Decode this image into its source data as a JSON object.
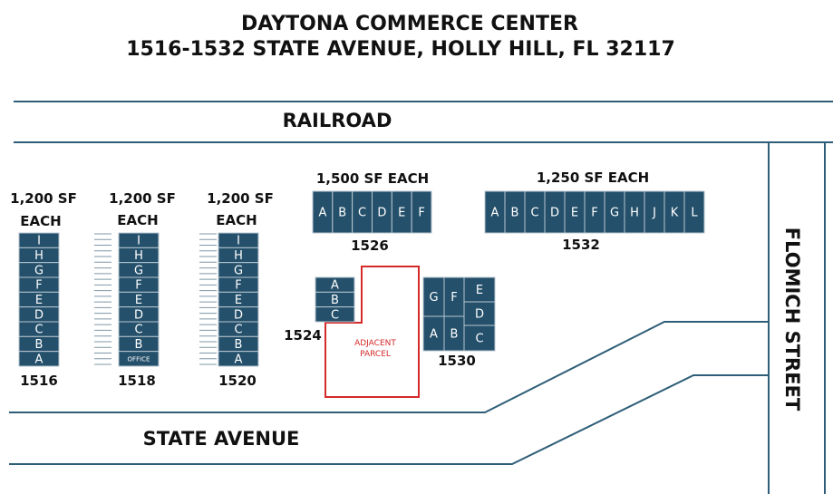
{
  "title": {
    "line1": "DAYTONA COMMERCE CENTER",
    "line2": "1516-1532 STATE AVENUE, HOLLY HILL, FL  32117"
  },
  "roads": {
    "railroad": "RAILROAD",
    "state_avenue": "STATE AVENUE",
    "flomich_street": "FLOMICH STREET"
  },
  "adjacent_parcel": {
    "line1": "ADJACENT",
    "line2": "PARCEL"
  },
  "buildings": [
    {
      "id": "b1516",
      "number": "1516",
      "sf_line1": "1,200 SF",
      "sf_line2": "EACH",
      "units": [
        "I",
        "H",
        "G",
        "F",
        "E",
        "D",
        "C",
        "B",
        "A"
      ]
    },
    {
      "id": "b1518",
      "number": "1518",
      "sf_line1": "1,200 SF",
      "sf_line2": "EACH",
      "units": [
        "I",
        "H",
        "G",
        "F",
        "E",
        "D",
        "C",
        "B",
        "OFFICE"
      ]
    },
    {
      "id": "b1520",
      "number": "1520",
      "sf_line1": "1,200 SF",
      "sf_line2": "EACH",
      "units": [
        "I",
        "H",
        "G",
        "F",
        "E",
        "D",
        "C",
        "B",
        "A"
      ]
    },
    {
      "id": "b1524",
      "number": "1524",
      "units": [
        "A",
        "B",
        "C"
      ]
    },
    {
      "id": "b1526",
      "number": "1526",
      "sf_line1": "1,500 SF EACH",
      "units": [
        "A",
        "B",
        "C",
        "D",
        "E",
        "F"
      ]
    },
    {
      "id": "b1530",
      "number": "1530",
      "units": [
        "G",
        "F",
        "E",
        "D",
        "A",
        "B",
        "C"
      ]
    },
    {
      "id": "b1532",
      "number": "1532",
      "sf_line1": "1,250 SF EACH",
      "units": [
        "A",
        "B",
        "C",
        "D",
        "E",
        "F",
        "G",
        "H",
        "J",
        "K",
        "L"
      ]
    }
  ]
}
